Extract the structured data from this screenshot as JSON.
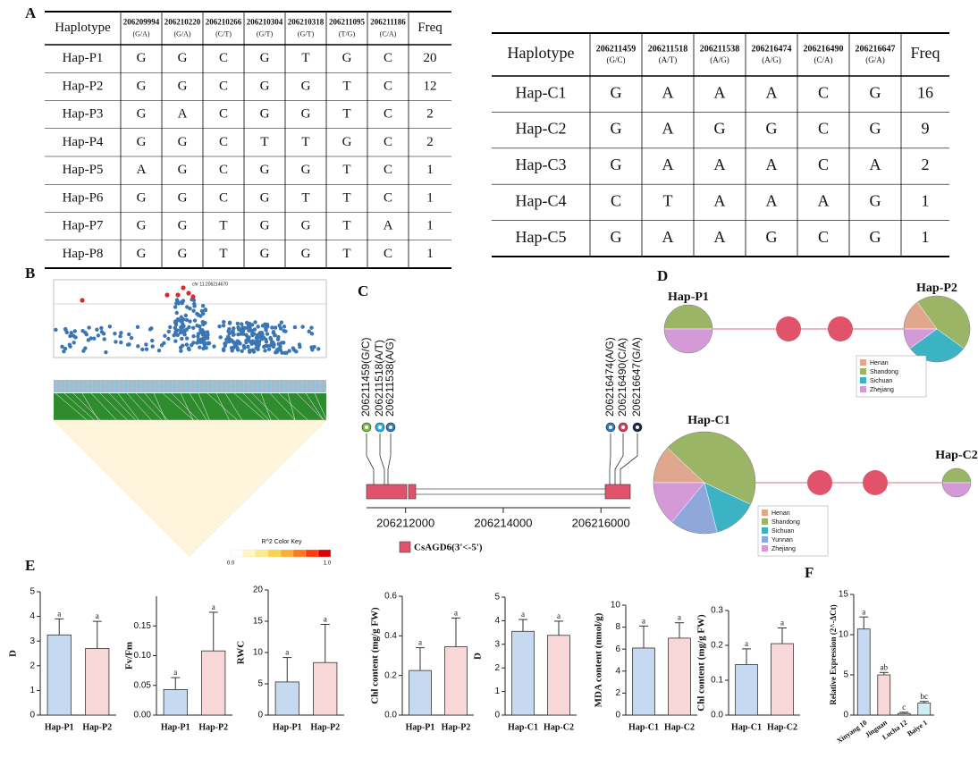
{
  "panel_labels": [
    "A",
    "B",
    "C",
    "D",
    "E",
    "F"
  ],
  "tables": [
    {
      "header": "Haplotype",
      "freq_header": "Freq",
      "columns": [
        {
          "pos": "206209994",
          "allele": "(G/A)"
        },
        {
          "pos": "206210220",
          "allele": "(G/A)"
        },
        {
          "pos": "206210266",
          "allele": "(C/T)"
        },
        {
          "pos": "206210304",
          "allele": "(G/T)"
        },
        {
          "pos": "206210318",
          "allele": "(G/T)"
        },
        {
          "pos": "206211095",
          "allele": "(T/G)"
        },
        {
          "pos": "206211186",
          "allele": "(C/A)"
        }
      ],
      "rows": [
        [
          "Hap-P1",
          "G",
          "G",
          "C",
          "G",
          "T",
          "G",
          "C",
          20
        ],
        [
          "Hap-P2",
          "G",
          "G",
          "C",
          "G",
          "G",
          "T",
          "C",
          12
        ],
        [
          "Hap-P3",
          "G",
          "A",
          "C",
          "G",
          "G",
          "T",
          "C",
          2
        ],
        [
          "Hap-P4",
          "G",
          "G",
          "C",
          "T",
          "T",
          "G",
          "C",
          2
        ],
        [
          "Hap-P5",
          "A",
          "G",
          "C",
          "G",
          "G",
          "T",
          "C",
          1
        ],
        [
          "Hap-P6",
          "G",
          "G",
          "C",
          "G",
          "T",
          "T",
          "C",
          1
        ],
        [
          "Hap-P7",
          "G",
          "G",
          "T",
          "G",
          "G",
          "T",
          "A",
          1
        ],
        [
          "Hap-P8",
          "G",
          "G",
          "T",
          "G",
          "G",
          "T",
          "C",
          1
        ]
      ]
    },
    {
      "header": "Haplotype",
      "freq_header": "Freq",
      "columns": [
        {
          "pos": "206211459",
          "allele": "(G/C)"
        },
        {
          "pos": "206211518",
          "allele": "(A/T)"
        },
        {
          "pos": "206211538",
          "allele": "(A/G)"
        },
        {
          "pos": "206216474",
          "allele": "(A/G)"
        },
        {
          "pos": "206216490",
          "allele": "(C/A)"
        },
        {
          "pos": "206216647",
          "allele": "(G/A)"
        }
      ],
      "rows": [
        [
          "Hap-C1",
          "G",
          "A",
          "A",
          "A",
          "C",
          "G",
          16
        ],
        [
          "Hap-C2",
          "G",
          "A",
          "G",
          "G",
          "C",
          "G",
          9
        ],
        [
          "Hap-C3",
          "G",
          "A",
          "A",
          "A",
          "C",
          "A",
          2
        ],
        [
          "Hap-C4",
          "C",
          "T",
          "A",
          "A",
          "A",
          "G",
          1
        ],
        [
          "Hap-C5",
          "G",
          "A",
          "A",
          "G",
          "C",
          "G",
          1
        ]
      ]
    }
  ],
  "ld_plot": {
    "annotation": "chr 11:206214670",
    "color_key": {
      "title": "R^2 Color Key",
      "min": {
        "value": 0,
        "label": "0.0"
      },
      "max": {
        "value": 1,
        "label": "1.0"
      }
    }
  },
  "gene": {
    "snps": [
      {
        "label": "206211459(G/C)",
        "color": "#7cc142"
      },
      {
        "label": "206211518(A/T)",
        "color": "#29b6e8"
      },
      {
        "label": "206211538(A/G)",
        "color": "#2f7fc1"
      },
      {
        "label": "206216474(A/G)",
        "color": "#2f7fc1"
      },
      {
        "label": "206216490(C/A)",
        "color": "#d8435a"
      },
      {
        "label": "206216647(G/A)",
        "color": "#1b2a4a"
      }
    ],
    "xlim": [
      206211200,
      206216600
    ],
    "xticks": [
      206212000,
      206214000,
      206216000
    ],
    "legend": "CsAGD6(3'<-5')",
    "color": "#e0536a"
  },
  "networks": [
    {
      "legend": [
        "Henan",
        "Shandong",
        "Sichuan",
        "Zhejiang"
      ],
      "colors": [
        "#e0a78f",
        "#9ab566",
        "#3bb3c3",
        "#d49ad8"
      ],
      "haplotypes": [
        {
          "name": "Hap-P1",
          "values": [
            0,
            50,
            0,
            50
          ]
        },
        {
          "name": "Hap-P2",
          "values": [
            15,
            45,
            30,
            10
          ]
        }
      ]
    },
    {
      "legend": [
        "Henan",
        "Shandong",
        "Sichuan",
        "Yunnan",
        "Zhejiang"
      ],
      "colors": [
        "#e0a78f",
        "#9ab566",
        "#3bb3c3",
        "#8fa8dc",
        "#d49ad8"
      ],
      "haplotypes": [
        {
          "name": "Hap-C1",
          "values": [
            12,
            45,
            14,
            15,
            14
          ]
        },
        {
          "name": "Hap-C2",
          "values": [
            0,
            50,
            0,
            0,
            50
          ]
        }
      ]
    }
  ],
  "chart_data": [
    {
      "type": "bar",
      "ylabel": "D",
      "categories": [
        "Hap-P1",
        "Hap-P2"
      ],
      "values": [
        3.25,
        2.7
      ],
      "errors": [
        0.65,
        1.1
      ],
      "letters": [
        "a",
        "a"
      ],
      "colors": [
        "#c5d9f1",
        "#f7d7d7"
      ],
      "ylim": [
        0,
        5
      ],
      "yticks": [
        0,
        1,
        2,
        3,
        4,
        5
      ]
    },
    {
      "type": "bar",
      "ylabel": "Fv/Fm",
      "categories": [
        "Hap-P1",
        "Hap-P2"
      ],
      "values": [
        0.043,
        0.108
      ],
      "errors": [
        0.02,
        0.065
      ],
      "letters": [
        "a",
        "a"
      ],
      "colors": [
        "#c5d9f1",
        "#f7d7d7"
      ],
      "ylim": [
        0,
        0.2
      ],
      "yticks": [
        {
          "value": 0,
          "label": "0.00"
        },
        0.05,
        {
          "value": 0.1,
          "label": "0.10"
        },
        0.15
      ]
    },
    {
      "type": "bar",
      "ylabel": "RWC",
      "categories": [
        "Hap-P1",
        "Hap-P2"
      ],
      "values": [
        5.3,
        8.4
      ],
      "errors": [
        3.9,
        6.1
      ],
      "letters": [
        "a",
        "a"
      ],
      "colors": [
        "#c5d9f1",
        "#f7d7d7"
      ],
      "ylim": [
        0,
        20
      ],
      "yticks": [
        0,
        5,
        10,
        15,
        20
      ]
    },
    {
      "type": "bar",
      "ylabel": "Chl content (mg/g FW)",
      "categories": [
        "Hap-P1",
        "Hap-P2"
      ],
      "values": [
        0.225,
        0.345
      ],
      "errors": [
        0.115,
        0.145
      ],
      "letters": [
        "a",
        "a"
      ],
      "colors": [
        "#c5d9f1",
        "#f7d7d7"
      ],
      "ylim": [
        0,
        0.6
      ],
      "yticks": [
        {
          "value": 0,
          "label": "0.0"
        },
        0.2,
        0.4,
        0.6
      ]
    },
    {
      "type": "bar",
      "ylabel": "D",
      "categories": [
        "Hap-C1",
        "Hap-C2"
      ],
      "values": [
        3.55,
        3.38
      ],
      "errors": [
        0.5,
        0.6
      ],
      "letters": [
        "a",
        "a"
      ],
      "colors": [
        "#c5d9f1",
        "#f7d7d7"
      ],
      "ylim": [
        0,
        5
      ],
      "yticks": [
        0,
        1,
        2,
        3,
        4,
        5
      ]
    },
    {
      "type": "bar",
      "ylabel": "MDA content (nmol/g)",
      "categories": [
        "Hap-C1",
        "Hap-C2"
      ],
      "values": [
        6.1,
        7.0
      ],
      "errors": [
        2.0,
        1.4
      ],
      "letters": [
        "a",
        "a"
      ],
      "colors": [
        "#c5d9f1",
        "#f7d7d7"
      ],
      "ylim": [
        0,
        10
      ],
      "yticks": [
        0,
        2,
        4,
        6,
        8,
        10
      ]
    },
    {
      "type": "bar",
      "ylabel": "Chl content (mg/g FW)",
      "categories": [
        "Hap-C1",
        "Hap-C2"
      ],
      "values": [
        0.145,
        0.205
      ],
      "errors": [
        0.045,
        0.045
      ],
      "letters": [
        "a",
        "a"
      ],
      "colors": [
        "#c5d9f1",
        "#f7d7d7"
      ],
      "ylim": [
        0,
        0.3
      ],
      "yticks": [
        {
          "value": 0,
          "label": "0.0"
        },
        0.1,
        0.2,
        0.3
      ]
    },
    {
      "type": "bar",
      "ylabel": "Relative Expression (2^-ΔCt)",
      "categories": [
        "Xinyang 10",
        "Jinguan",
        "Lucha 12",
        "Baiye 1"
      ],
      "values": [
        10.7,
        5.0,
        0.2,
        1.5
      ],
      "errors": [
        1.5,
        0.3,
        0.15,
        0.2
      ],
      "letters": [
        "a",
        "ab",
        "c",
        "bc"
      ],
      "colors": [
        "#c5d9f1",
        "#f7d7d7",
        "#bfe3c8",
        "#cdeef2"
      ],
      "ylim": [
        0,
        15
      ],
      "yticks": [
        0,
        5,
        10,
        15
      ],
      "rotate_labels": true
    }
  ]
}
